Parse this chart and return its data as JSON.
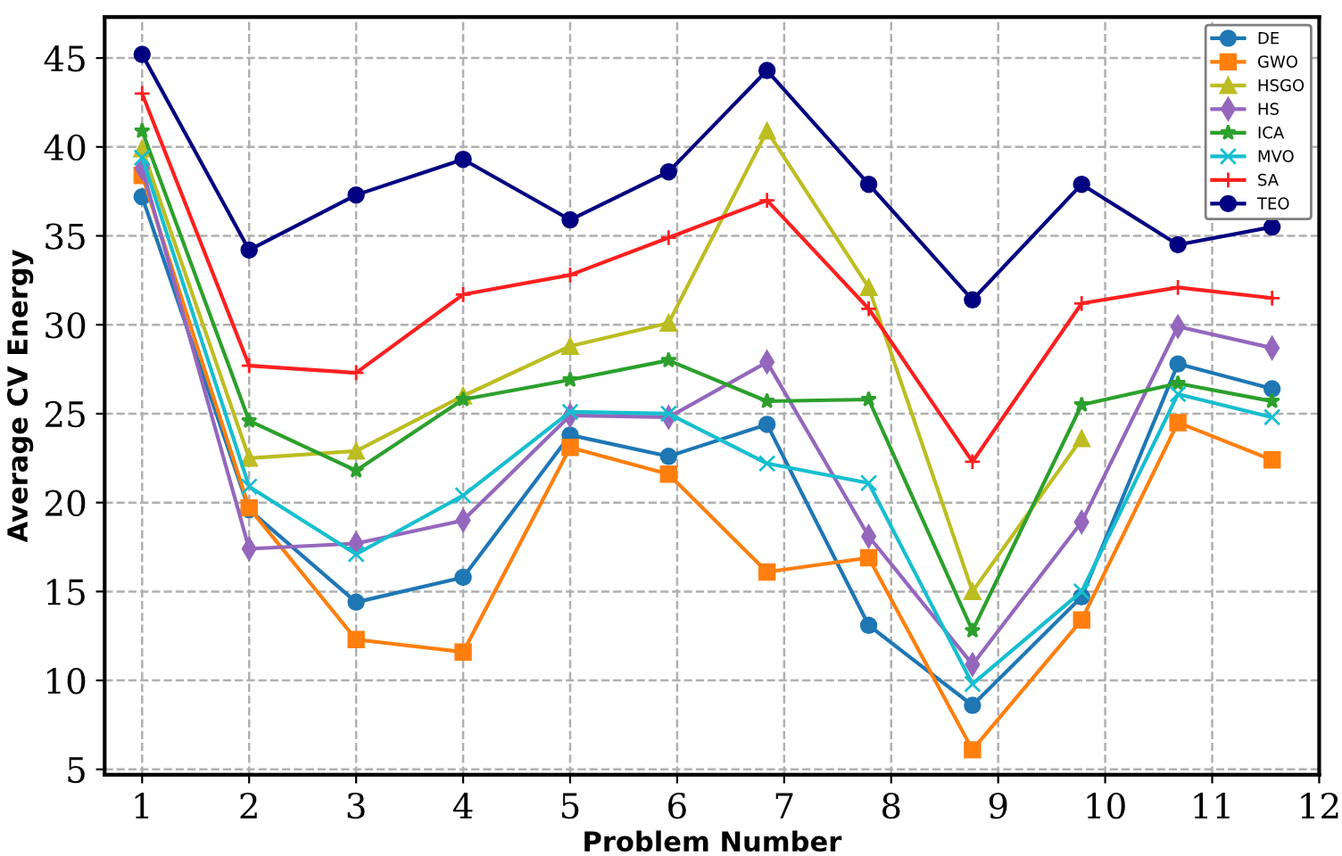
{
  "chart_data": {
    "type": "line",
    "xlabel": "Problem Number",
    "ylabel": "Average CV Energy",
    "x": [
      1,
      2,
      3,
      4,
      5,
      5.92,
      6.84,
      7.79,
      8.76,
      9.78,
      10.68,
      11.56
    ],
    "xlim": [
      0.65,
      12
    ],
    "xticks": [
      1,
      2,
      3,
      4,
      5,
      6,
      7,
      8,
      9,
      10,
      11,
      12
    ],
    "ylim": [
      4.7,
      47.3
    ],
    "yticks": [
      5,
      10,
      15,
      20,
      25,
      30,
      35,
      40,
      45
    ],
    "grid": true,
    "legend": "top right",
    "line_style": "solid",
    "series": [
      {
        "name": "DE",
        "color": "#1f77b4",
        "marker": "circle",
        "values": [
          37.2,
          19.6,
          14.4,
          15.8,
          23.8,
          22.6,
          24.4,
          13.1,
          8.6,
          14.7,
          27.8,
          26.4
        ]
      },
      {
        "name": "GWO",
        "color": "#ff7f0e",
        "marker": "square",
        "values": [
          38.4,
          19.7,
          12.3,
          11.6,
          23.1,
          21.6,
          16.1,
          16.9,
          6.1,
          13.4,
          24.5,
          22.4
        ]
      },
      {
        "name": "HSGO",
        "color": "#bcbd22",
        "marker": "triangle",
        "values": [
          39.9,
          22.5,
          22.9,
          26.0,
          28.8,
          30.1,
          40.9,
          32.1,
          15.0,
          23.6,
          null,
          null
        ]
      },
      {
        "name": "HS",
        "color": "#9467bd",
        "marker": "diamond",
        "values": [
          38.8,
          17.4,
          17.7,
          19.0,
          24.9,
          24.8,
          27.9,
          18.1,
          10.9,
          18.9,
          29.9,
          28.7
        ]
      },
      {
        "name": "ICA",
        "color": "#2ca02c",
        "marker": "star",
        "values": [
          40.9,
          24.6,
          21.8,
          25.8,
          26.9,
          28.0,
          25.7,
          25.8,
          12.8,
          25.5,
          26.7,
          25.7
        ]
      },
      {
        "name": "MVO",
        "color": "#17becf",
        "marker": "cross",
        "values": [
          39.4,
          20.9,
          17.1,
          20.4,
          25.1,
          25.0,
          22.2,
          21.1,
          9.8,
          15.0,
          26.1,
          24.8
        ]
      },
      {
        "name": "SA",
        "color": "#ff2020",
        "marker": "plus",
        "values": [
          43.0,
          27.7,
          27.3,
          31.7,
          32.8,
          34.9,
          37.0,
          30.9,
          22.3,
          31.2,
          32.1,
          31.5
        ]
      },
      {
        "name": "TEO",
        "color": "#000080",
        "marker": "circle",
        "values": [
          45.2,
          34.2,
          37.3,
          39.3,
          35.9,
          38.6,
          44.3,
          37.9,
          31.4,
          37.9,
          34.5,
          35.5
        ]
      }
    ]
  }
}
